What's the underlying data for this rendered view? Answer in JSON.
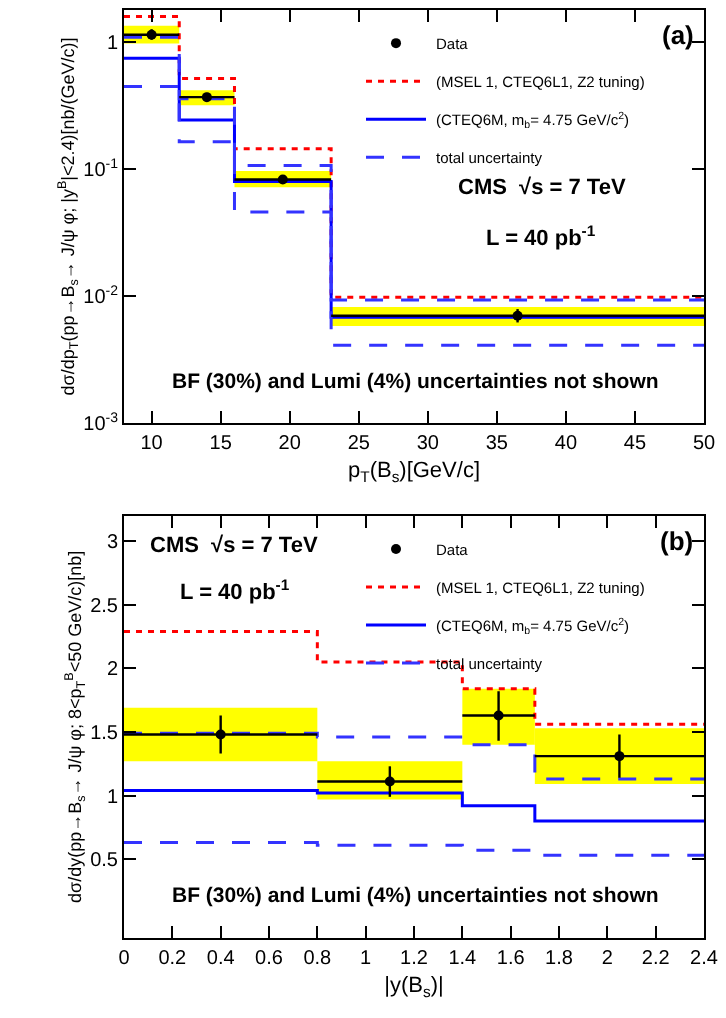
{
  "chart_data": [
    {
      "type": "step",
      "xlabel": "p$_{T}$(B$_{s}$)[GeV/c]",
      "ylabel": "dσ/dp$_{T}$(pp→B$_{s}$→ J/ψ φ; |y$^{B}$|<2.4)[nb/(GeV/c)]",
      "log": true,
      "xlim": [
        8,
        50
      ],
      "xticks": [
        10,
        15,
        20,
        25,
        30,
        35,
        40,
        45,
        50
      ],
      "ylim": [
        0.001,
        1.8
      ],
      "yticks": [
        {
          "value": 0.001,
          "label": "10$^{-3}$"
        },
        {
          "value": 0.01,
          "label": "10$^{-2}$"
        },
        {
          "value": 0.1,
          "label": "10$^{-1}$"
        },
        1
      ],
      "legend": "top right",
      "annotations": [
        "(a)",
        "CMS  √s = 7 TeV",
        "L = 40 pb$^{-1}$",
        "BF (30%) and Lumi (4%) uncertainties not shown"
      ],
      "series": [
        {
          "type": "bar",
          "color": "#ffff00",
          "x": [
            10,
            14,
            19.5,
            36.5
          ],
          "base": [
            0.98,
            0.32,
            0.072,
            0.0058
          ],
          "values": [
            0.37,
            0.1,
            0.025,
            0.0024
          ]
        },
        {
          "name": "Data",
          "type": "scatter",
          "marker": "circle",
          "color": "#000000",
          "x": [
            10,
            14,
            19.5,
            36.5
          ],
          "values": [
            1.15,
            0.37,
            0.083,
            0.007
          ],
          "errors": [
            [
              1.05,
              1.27
            ],
            [
              0.34,
              0.4
            ],
            [
              0.078,
              0.09
            ],
            [
              0.0062,
              0.0079
            ]
          ],
          "xerrors": [
            2,
            2,
            3.5,
            13.5
          ]
        },
        {
          "name": "(MSEL 1, CTEQ6L1, Z2 tuning)",
          "color": "#ff0000",
          "line_style": "dotted",
          "x": [
            8,
            12,
            16,
            23,
            50
          ],
          "values": [
            1.6,
            0.52,
            0.145,
            0.0098,
            0.0098
          ]
        },
        {
          "name": "(CTEQ6M, m$_{b}$= 4.75 GeV/c$^{2}$)",
          "color": "#0000ff",
          "line_style": "solid",
          "x": [
            8,
            12,
            16,
            23,
            50
          ],
          "values": [
            0.75,
            0.245,
            0.08,
            0.0068,
            0.0068
          ]
        },
        {
          "name": "total uncertainty",
          "color": "#3333ff",
          "line_style": "dashed",
          "x": [
            8,
            12,
            16,
            23,
            50
          ],
          "values": [
            1.1,
            0.36,
            0.107,
            0.0093,
            0.0093
          ]
        },
        {
          "color": "#3333ff",
          "line_style": "dashed",
          "x": [
            8,
            12,
            16,
            23,
            50
          ],
          "values": [
            0.45,
            0.165,
            0.046,
            0.0041,
            0.0041
          ]
        }
      ]
    },
    {
      "type": "step",
      "xlabel": "|y(B$_{s}$)|",
      "ylabel": "dσ/dy(pp→B$_{s}$→ J/ψ φ; 8<p$_{T}$$^{B}$<50 GeV/c)[nb]",
      "xlim": [
        0,
        2.4
      ],
      "xticks": [
        0,
        0.2,
        0.4,
        0.6,
        0.8,
        1,
        1.2,
        1.4,
        1.6,
        1.8,
        2,
        2.2,
        2.4
      ],
      "ylim": [
        -0.12,
        3.2
      ],
      "yticks": [
        0.5,
        1,
        1.5,
        2,
        2.5,
        3
      ],
      "legend": "top right",
      "annotations": [
        "(b)",
        "CMS  √s = 7 TeV",
        "L = 40 pb$^{-1}$",
        "BF (30%) and Lumi (4%) uncertainties not shown"
      ],
      "series": [
        {
          "type": "bar",
          "color": "#ffff00",
          "x": [
            0.4,
            1.1,
            1.55,
            2.05
          ],
          "base": [
            1.27,
            0.97,
            1.4,
            1.09
          ],
          "values": [
            0.42,
            0.3,
            0.44,
            0.44
          ]
        },
        {
          "name": "Data",
          "type": "scatter",
          "marker": "circle",
          "color": "#000000",
          "x": [
            0.4,
            1.1,
            1.55,
            2.05
          ],
          "values": [
            1.48,
            1.11,
            1.63,
            1.31
          ],
          "errors": [
            [
              1.33,
              1.63
            ],
            [
              0.99,
              1.23
            ],
            [
              1.43,
              1.82
            ],
            [
              1.14,
              1.48
            ]
          ],
          "xerrors": [
            0.4,
            0.3,
            0.15,
            0.35
          ]
        },
        {
          "name": "(MSEL 1, CTEQ6L1, Z2 tuning)",
          "color": "#ff0000",
          "line_style": "dotted",
          "x": [
            0,
            0.8,
            1.4,
            1.7,
            2.4
          ],
          "values": [
            2.29,
            2.05,
            1.84,
            1.56,
            1.56
          ]
        },
        {
          "name": "(CTEQ6M, m$_{b}$= 4.75 GeV/c$^{2}$)",
          "color": "#0000ff",
          "line_style": "solid",
          "x": [
            0,
            0.8,
            1.4,
            1.7,
            2.4
          ],
          "values": [
            1.04,
            1.02,
            0.92,
            0.8,
            0.8
          ]
        },
        {
          "name": "total uncertainty",
          "color": "#3333ff",
          "line_style": "dashed",
          "x": [
            0,
            0.8,
            1.4,
            1.7,
            2.4
          ],
          "values": [
            1.49,
            1.46,
            1.4,
            1.13,
            1.13
          ]
        },
        {
          "color": "#3333ff",
          "line_style": "dashed",
          "x": [
            0,
            0.8,
            1.4,
            1.7,
            2.4
          ],
          "values": [
            0.63,
            0.61,
            0.57,
            0.53,
            0.53
          ]
        }
      ]
    }
  ]
}
